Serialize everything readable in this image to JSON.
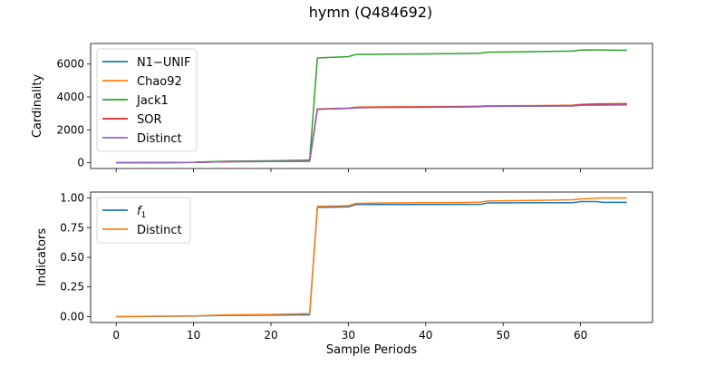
{
  "figure": {
    "title": "hymn (Q484692)"
  },
  "chart_data": [
    {
      "type": "line",
      "ylabel": "Cardinality",
      "xlabel": "",
      "xlim": [
        -3.3,
        69.3
      ],
      "ylim": [
        -350,
        7250
      ],
      "xticks": [
        0,
        10,
        20,
        30,
        40,
        50,
        60
      ],
      "yticks": [
        0,
        2000,
        4000,
        6000
      ],
      "ytick_labels": [
        "0",
        "2000",
        "4000",
        "6000"
      ],
      "grid": false,
      "legend_position": "upper-left",
      "series": [
        {
          "name": "N1−UNIF",
          "color": "#1f77b4",
          "x": [
            0,
            5,
            10,
            12,
            15,
            20,
            24,
            25,
            26,
            30,
            31,
            35,
            40,
            45,
            47,
            48,
            55,
            59,
            60,
            62,
            66
          ],
          "y": [
            0,
            10,
            20,
            40,
            70,
            80,
            90,
            100,
            3250,
            3300,
            3350,
            3370,
            3380,
            3400,
            3410,
            3430,
            3450,
            3460,
            3500,
            3520,
            3520
          ]
        },
        {
          "name": "Chao92",
          "color": "#ff7f0e",
          "x": [
            0,
            5,
            10,
            12,
            15,
            20,
            24,
            25,
            26,
            30,
            31,
            35,
            40,
            45,
            47,
            48,
            55,
            59,
            60,
            62,
            66
          ],
          "y": [
            0,
            10,
            20,
            40,
            70,
            80,
            90,
            100,
            3280,
            3320,
            3380,
            3400,
            3410,
            3430,
            3440,
            3460,
            3480,
            3500,
            3550,
            3580,
            3600
          ]
        },
        {
          "name": "Jack1",
          "color": "#2ca02c",
          "x": [
            0,
            5,
            10,
            12,
            15,
            20,
            24,
            25,
            26,
            30,
            31,
            35,
            40,
            45,
            47,
            48,
            55,
            59,
            60,
            62,
            66
          ],
          "y": [
            0,
            10,
            30,
            60,
            100,
            120,
            150,
            170,
            6370,
            6450,
            6580,
            6600,
            6620,
            6640,
            6660,
            6720,
            6760,
            6790,
            6850,
            6860,
            6840
          ]
        },
        {
          "name": "SOR",
          "color": "#d62728",
          "x": [
            0,
            5,
            10,
            12,
            15,
            20,
            24,
            25,
            26,
            30,
            31,
            35,
            40,
            45,
            47,
            48,
            55,
            59,
            60,
            62,
            66
          ],
          "y": [
            0,
            10,
            20,
            40,
            70,
            80,
            90,
            100,
            3260,
            3310,
            3360,
            3380,
            3390,
            3410,
            3420,
            3440,
            3460,
            3480,
            3520,
            3550,
            3560
          ]
        },
        {
          "name": "Distinct",
          "color": "#9467bd",
          "x": [
            0,
            5,
            10,
            12,
            15,
            20,
            24,
            25,
            26,
            30,
            31,
            35,
            40,
            45,
            47,
            48,
            55,
            59,
            60,
            62,
            66
          ],
          "y": [
            0,
            10,
            20,
            40,
            70,
            80,
            90,
            100,
            3250,
            3300,
            3340,
            3360,
            3370,
            3390,
            3400,
            3420,
            3440,
            3450,
            3490,
            3500,
            3510
          ]
        }
      ]
    },
    {
      "type": "line",
      "ylabel": "Indicators",
      "xlabel": "Sample Periods",
      "xlim": [
        -3.3,
        69.3
      ],
      "ylim": [
        -0.05,
        1.05
      ],
      "xticks": [
        0,
        10,
        20,
        30,
        40,
        50,
        60
      ],
      "yticks": [
        0,
        0.25,
        0.5,
        0.75,
        1.0
      ],
      "ytick_labels": [
        "0.00",
        "0.25",
        "0.50",
        "0.75",
        "1.00"
      ],
      "grid": false,
      "legend_position": "upper-left",
      "series": [
        {
          "name": "f1",
          "color": "#1f77b4",
          "x": [
            0,
            5,
            10,
            12,
            15,
            20,
            25,
            26,
            30,
            31,
            35,
            40,
            45,
            47,
            48,
            55,
            59,
            60,
            62,
            63,
            66
          ],
          "y": [
            0,
            0.002,
            0.004,
            0.007,
            0.01,
            0.012,
            0.015,
            0.92,
            0.925,
            0.945,
            0.945,
            0.945,
            0.946,
            0.946,
            0.958,
            0.96,
            0.96,
            0.97,
            0.97,
            0.963,
            0.963
          ]
        },
        {
          "name": "Distinct",
          "color": "#ff7f0e",
          "x": [
            0,
            5,
            10,
            12,
            15,
            20,
            25,
            26,
            30,
            31,
            35,
            40,
            45,
            47,
            48,
            55,
            59,
            60,
            62,
            63,
            66
          ],
          "y": [
            0,
            0.003,
            0.005,
            0.01,
            0.015,
            0.018,
            0.025,
            0.93,
            0.935,
            0.955,
            0.958,
            0.96,
            0.962,
            0.965,
            0.975,
            0.98,
            0.985,
            0.992,
            0.998,
            1.0,
            1.0
          ]
        }
      ]
    }
  ]
}
